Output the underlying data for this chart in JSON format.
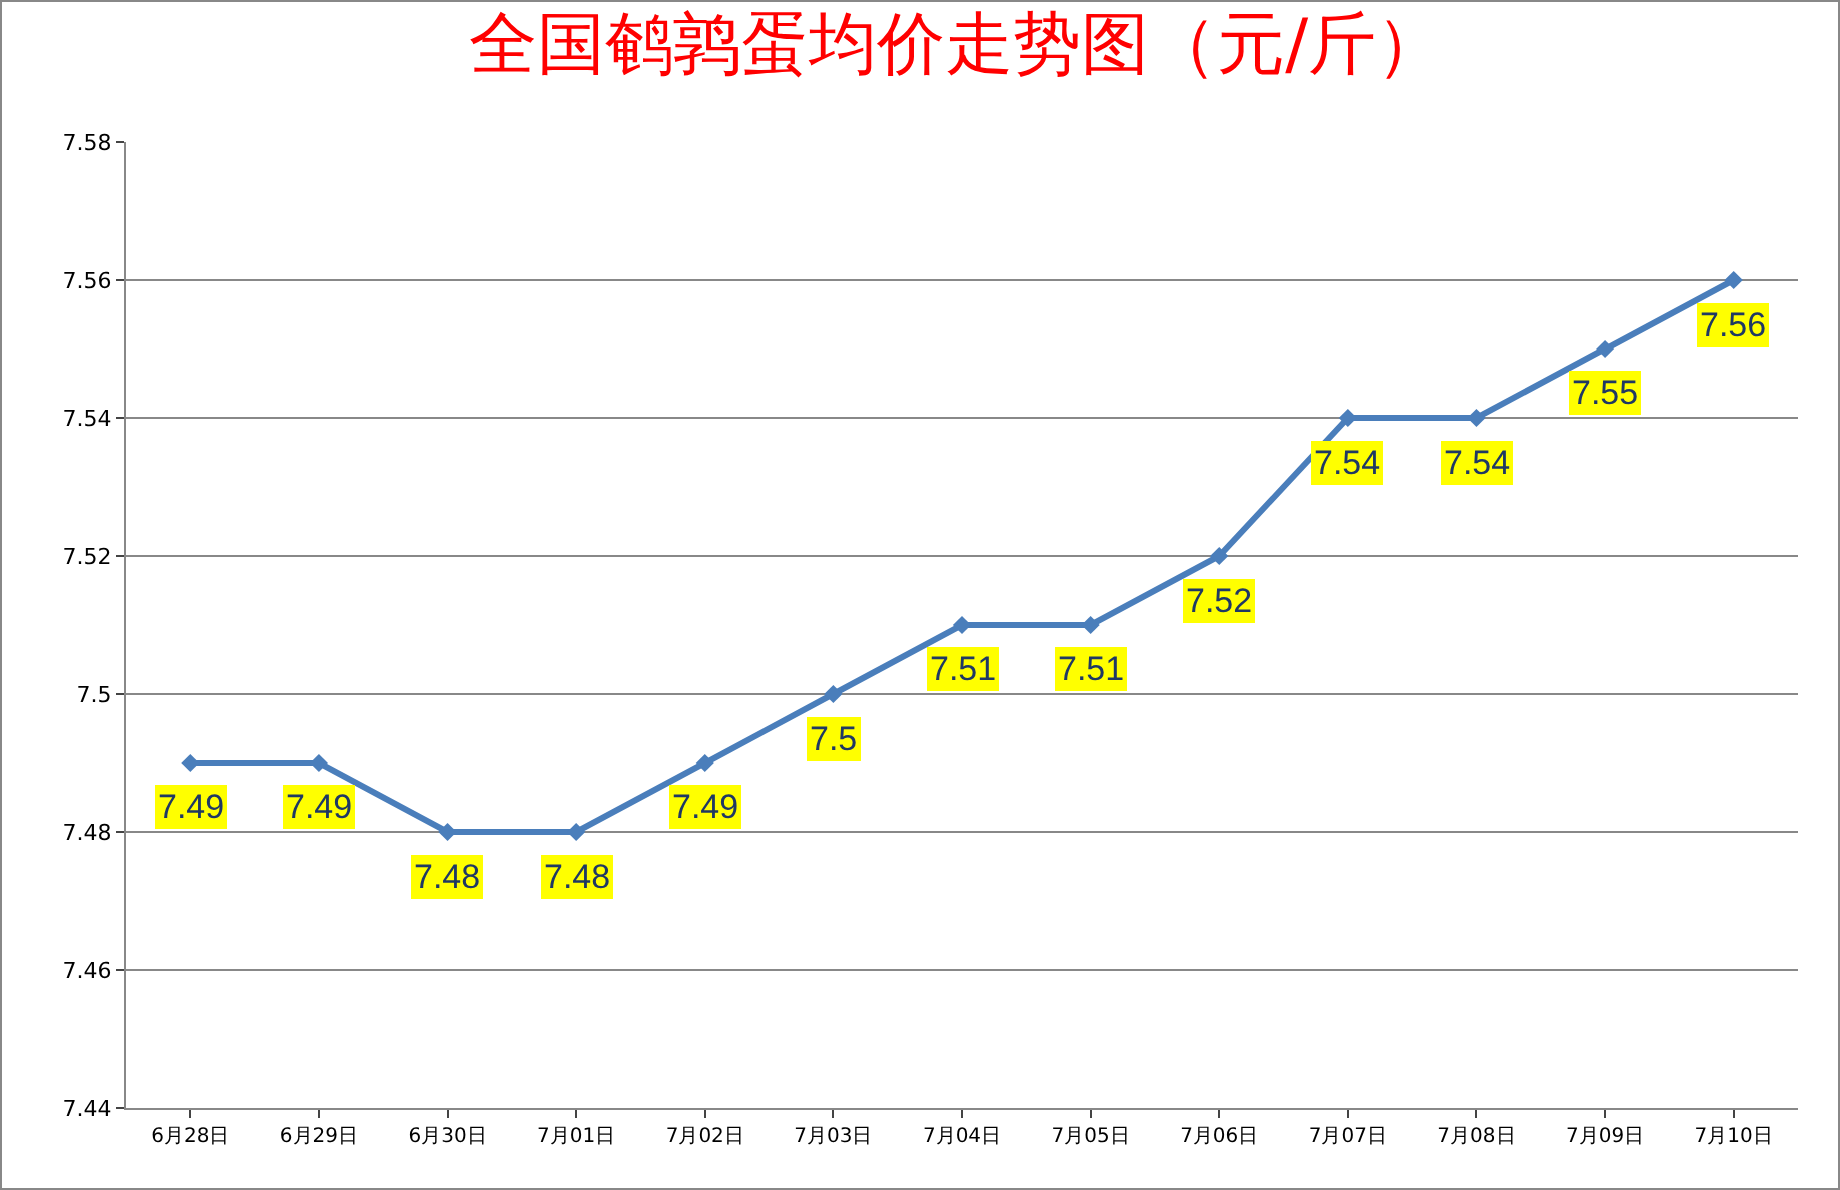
{
  "chart_data": {
    "type": "line",
    "title": "全国鹌鹑蛋均价走势图（元/斤）",
    "categories": [
      "6月28日",
      "6月29日",
      "6月30日",
      "7月01日",
      "7月02日",
      "7月03日",
      "7月04日",
      "7月05日",
      "7月06日",
      "7月07日",
      "7月08日",
      "7月09日",
      "7月10日"
    ],
    "series": [
      {
        "color": "#4a7ebb",
        "values": [
          7.49,
          7.49,
          7.48,
          7.48,
          7.49,
          7.5,
          7.51,
          7.51,
          7.52,
          7.54,
          7.54,
          7.55,
          7.56
        ],
        "value_labels": [
          "7.49",
          "7.49",
          "7.48",
          "7.48",
          "7.49",
          "7.5",
          "7.51",
          "7.51",
          "7.52",
          "7.54",
          "7.54",
          "7.55",
          "7.56"
        ]
      }
    ],
    "ylim": [
      7.44,
      7.58
    ],
    "yticks": [
      7.44,
      7.46,
      7.48,
      7.5,
      7.52,
      7.54,
      7.56,
      7.58
    ],
    "grid": "y",
    "legend": false,
    "marker": "diamond",
    "line_style": "solid"
  }
}
